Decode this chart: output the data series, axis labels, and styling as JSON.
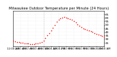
{
  "title": "Milwaukee Outdoor Temperature per Minute (24 Hours)",
  "title_fontsize": 3.8,
  "bg_color": "#ffffff",
  "line_color": "#ff0000",
  "dot_size": 1.2,
  "ylim": [
    20,
    70
  ],
  "xlim": [
    0,
    1440
  ],
  "yticks": [
    25,
    30,
    35,
    40,
    45,
    50,
    55,
    60,
    65
  ],
  "ytick_fontsize": 3.2,
  "xtick_fontsize": 2.8,
  "vline_x": 480,
  "vline_color": "#aaaaaa",
  "vline_style": "dotted",
  "xtick_positions": [
    0,
    120,
    240,
    360,
    480,
    600,
    720,
    840,
    960,
    1080,
    1200,
    1320,
    1440
  ],
  "xtick_labels": [
    "12:00 AM",
    "2:00 AM",
    "4:00 AM",
    "6:00 AM",
    "8:00 AM",
    "10:00 AM",
    "12:00 PM",
    "2:00 PM",
    "4:00 PM",
    "6:00 PM",
    "8:00 PM",
    "10:00 PM",
    "12:00 AM"
  ],
  "data_x": [
    0,
    30,
    60,
    90,
    120,
    150,
    180,
    210,
    240,
    270,
    300,
    330,
    360,
    390,
    420,
    450,
    480,
    510,
    540,
    570,
    600,
    630,
    660,
    690,
    720,
    750,
    780,
    810,
    840,
    870,
    900,
    930,
    960,
    990,
    1020,
    1050,
    1080,
    1110,
    1140,
    1170,
    1200,
    1230,
    1260,
    1290,
    1320,
    1350,
    1380,
    1410,
    1440
  ],
  "data_y": [
    28,
    27,
    26,
    26,
    25,
    25,
    24,
    24,
    24,
    23,
    23,
    23,
    24,
    24,
    25,
    26,
    28,
    31,
    35,
    38,
    42,
    46,
    50,
    54,
    57,
    59,
    60,
    61,
    60,
    59,
    58,
    57,
    55,
    53,
    51,
    49,
    47,
    45,
    44,
    43,
    42,
    41,
    40,
    38,
    37,
    36,
    35,
    34,
    33
  ]
}
